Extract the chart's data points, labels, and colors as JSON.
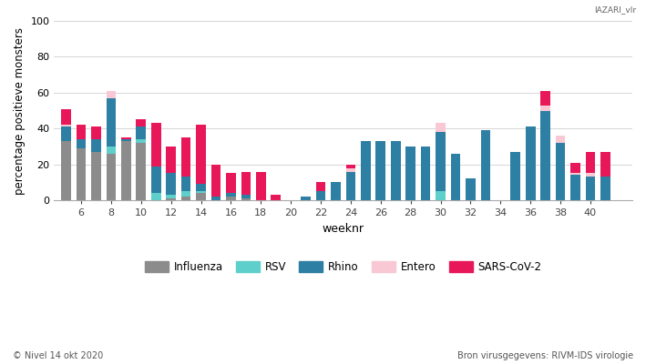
{
  "weeks": [
    5,
    6,
    7,
    8,
    9,
    10,
    11,
    12,
    13,
    14,
    15,
    16,
    17,
    18,
    19,
    21,
    22,
    23,
    24,
    25,
    26,
    27,
    28,
    29,
    30,
    31,
    32,
    33,
    35,
    36,
    37,
    38,
    39,
    40,
    41
  ],
  "influenza": [
    33,
    29,
    27,
    26,
    33,
    32,
    0,
    1,
    2,
    4,
    0,
    2,
    1,
    0,
    0,
    0,
    0,
    0,
    0,
    0,
    0,
    0,
    0,
    0,
    0,
    0,
    0,
    0,
    0,
    0,
    0,
    0,
    0,
    0,
    0
  ],
  "rsv": [
    0,
    0,
    0,
    4,
    0,
    2,
    4,
    2,
    3,
    1,
    0,
    0,
    0,
    0,
    0,
    0,
    0,
    0,
    0,
    0,
    0,
    0,
    0,
    0,
    5,
    0,
    0,
    0,
    0,
    0,
    0,
    0,
    0,
    0,
    0
  ],
  "rhino": [
    8,
    5,
    7,
    27,
    1,
    7,
    15,
    12,
    8,
    4,
    2,
    2,
    2,
    0,
    0,
    2,
    5,
    10,
    16,
    33,
    33,
    33,
    30,
    30,
    33,
    26,
    12,
    39,
    27,
    41,
    50,
    32,
    14,
    13,
    13
  ],
  "entero": [
    1,
    0,
    0,
    4,
    0,
    0,
    0,
    0,
    0,
    0,
    0,
    0,
    0,
    0,
    0,
    0,
    0,
    0,
    2,
    0,
    0,
    0,
    0,
    0,
    5,
    0,
    0,
    0,
    0,
    0,
    3,
    4,
    1,
    2,
    0
  ],
  "sars": [
    9,
    8,
    7,
    0,
    1,
    4,
    24,
    15,
    22,
    33,
    18,
    11,
    13,
    16,
    3,
    0,
    5,
    0,
    2,
    0,
    0,
    0,
    0,
    0,
    0,
    0,
    0,
    0,
    0,
    0,
    8,
    0,
    6,
    12,
    14
  ],
  "colors": {
    "influenza": "#8c8c8c",
    "rsv": "#5ecfca",
    "rhino": "#2d7fa3",
    "entero": "#f9c8d5",
    "sars": "#e8175a"
  },
  "ylabel": "percentage positieve monsters",
  "xlabel": "weeknr",
  "ylim": [
    0,
    100
  ],
  "yticks": [
    0,
    20,
    40,
    60,
    80,
    100
  ],
  "xticks": [
    6,
    8,
    10,
    12,
    14,
    16,
    18,
    20,
    22,
    24,
    26,
    28,
    30,
    32,
    34,
    36,
    38,
    40
  ],
  "xlim": [
    4.2,
    42.8
  ],
  "title_text": "IAZARI_vlr",
  "footer_left": "© Nivel 14 okt 2020",
  "footer_right": "Bron virusgegevens: RIVM-IDS virologie",
  "background_color": "#ffffff",
  "grid_color": "#d0d0d0"
}
